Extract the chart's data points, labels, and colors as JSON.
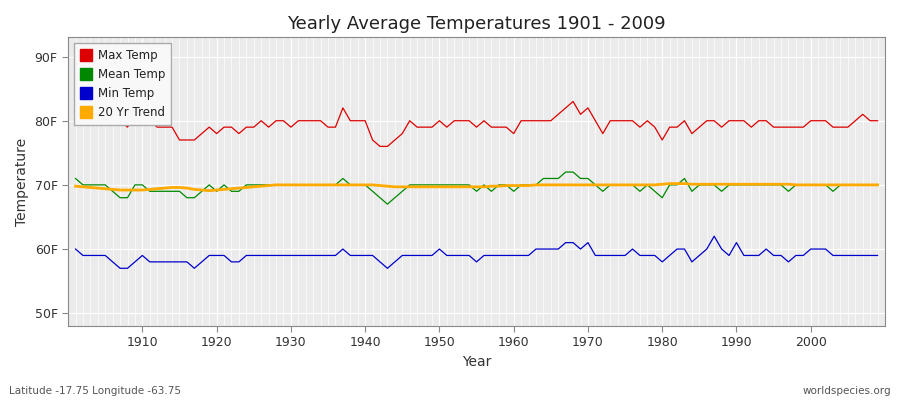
{
  "title": "Yearly Average Temperatures 1901 - 2009",
  "xlabel": "Year",
  "ylabel": "Temperature",
  "years_start": 1901,
  "years_end": 2009,
  "yticks": [
    50,
    60,
    70,
    80,
    90
  ],
  "ytick_labels": [
    "50F",
    "60F",
    "70F",
    "80F",
    "90F"
  ],
  "xticks": [
    1910,
    1920,
    1930,
    1940,
    1950,
    1960,
    1970,
    1980,
    1990,
    2000
  ],
  "ylim": [
    48,
    93
  ],
  "xlim": [
    1900,
    2010
  ],
  "bg_color": "#ffffff",
  "plot_bg_color": "#ebebeb",
  "grid_color": "#ffffff",
  "max_temp_color": "#dd0000",
  "mean_temp_color": "#008800",
  "min_temp_color": "#0000cc",
  "trend_color": "#ffaa00",
  "legend_labels": [
    "Max Temp",
    "Mean Temp",
    "Min Temp",
    "20 Yr Trend"
  ],
  "footer_left": "Latitude -17.75 Longitude -63.75",
  "footer_right": "worldspecies.org",
  "max_temps": [
    83,
    81,
    80,
    80,
    80,
    80,
    80,
    79,
    81,
    80,
    80,
    79,
    79,
    79,
    77,
    77,
    77,
    78,
    79,
    78,
    79,
    79,
    78,
    79,
    79,
    80,
    79,
    80,
    80,
    79,
    80,
    80,
    80,
    80,
    79,
    79,
    82,
    80,
    80,
    80,
    77,
    76,
    76,
    77,
    78,
    80,
    79,
    79,
    79,
    80,
    79,
    80,
    80,
    80,
    79,
    80,
    79,
    79,
    79,
    78,
    80,
    80,
    80,
    80,
    80,
    81,
    82,
    83,
    81,
    82,
    80,
    78,
    80,
    80,
    80,
    80,
    79,
    80,
    79,
    77,
    79,
    79,
    80,
    78,
    79,
    80,
    80,
    79,
    80,
    80,
    80,
    79,
    80,
    80,
    79,
    79,
    79,
    79,
    79,
    80,
    80,
    80,
    79,
    79,
    79,
    80,
    81,
    80,
    80
  ],
  "mean_temps": [
    71,
    70,
    70,
    70,
    70,
    69,
    68,
    68,
    70,
    70,
    69,
    69,
    69,
    69,
    69,
    68,
    68,
    69,
    70,
    69,
    70,
    69,
    69,
    70,
    70,
    70,
    70,
    70,
    70,
    70,
    70,
    70,
    70,
    70,
    70,
    70,
    71,
    70,
    70,
    70,
    69,
    68,
    67,
    68,
    69,
    70,
    70,
    70,
    70,
    70,
    70,
    70,
    70,
    70,
    69,
    70,
    69,
    70,
    70,
    69,
    70,
    70,
    70,
    71,
    71,
    71,
    72,
    72,
    71,
    71,
    70,
    69,
    70,
    70,
    70,
    70,
    69,
    70,
    69,
    68,
    70,
    70,
    71,
    69,
    70,
    70,
    70,
    69,
    70,
    70,
    70,
    70,
    70,
    70,
    70,
    70,
    69,
    70,
    70,
    70,
    70,
    70,
    69,
    70,
    70,
    70,
    70,
    70,
    70
  ],
  "min_temps": [
    60,
    59,
    59,
    59,
    59,
    58,
    57,
    57,
    58,
    59,
    58,
    58,
    58,
    58,
    58,
    58,
    57,
    58,
    59,
    59,
    59,
    58,
    58,
    59,
    59,
    59,
    59,
    59,
    59,
    59,
    59,
    59,
    59,
    59,
    59,
    59,
    60,
    59,
    59,
    59,
    59,
    58,
    57,
    58,
    59,
    59,
    59,
    59,
    59,
    60,
    59,
    59,
    59,
    59,
    58,
    59,
    59,
    59,
    59,
    59,
    59,
    59,
    60,
    60,
    60,
    60,
    61,
    61,
    60,
    61,
    59,
    59,
    59,
    59,
    59,
    60,
    59,
    59,
    59,
    58,
    59,
    60,
    60,
    58,
    59,
    60,
    62,
    60,
    59,
    61,
    59,
    59,
    59,
    60,
    59,
    59,
    58,
    59,
    59,
    60,
    60,
    60,
    59,
    59,
    59,
    59,
    59,
    59,
    59
  ],
  "trend_values": [
    69.8,
    69.7,
    69.6,
    69.5,
    69.4,
    69.3,
    69.2,
    69.2,
    69.2,
    69.2,
    69.3,
    69.4,
    69.5,
    69.6,
    69.6,
    69.5,
    69.3,
    69.2,
    69.1,
    69.2,
    69.3,
    69.4,
    69.5,
    69.6,
    69.7,
    69.8,
    69.9,
    70.0,
    70.0,
    70.0,
    70.0,
    70.0,
    70.0,
    70.0,
    70.0,
    70.0,
    70.0,
    70.0,
    70.0,
    70.0,
    70.0,
    69.9,
    69.8,
    69.7,
    69.7,
    69.7,
    69.7,
    69.7,
    69.7,
    69.7,
    69.7,
    69.7,
    69.7,
    69.7,
    69.7,
    69.7,
    69.8,
    69.8,
    69.9,
    69.9,
    69.9,
    69.9,
    70.0,
    70.0,
    70.0,
    70.0,
    70.0,
    70.0,
    70.0,
    70.0,
    70.0,
    70.0,
    70.0,
    70.0,
    70.0,
    70.0,
    70.0,
    70.0,
    70.0,
    70.1,
    70.2,
    70.2,
    70.2,
    70.1,
    70.1,
    70.1,
    70.1,
    70.1,
    70.1,
    70.1,
    70.1,
    70.1,
    70.1,
    70.1,
    70.1,
    70.1,
    70.1,
    70.0,
    70.0,
    70.0,
    70.0,
    70.0,
    70.0,
    70.0,
    70.0,
    70.0,
    70.0,
    70.0,
    70.0
  ]
}
